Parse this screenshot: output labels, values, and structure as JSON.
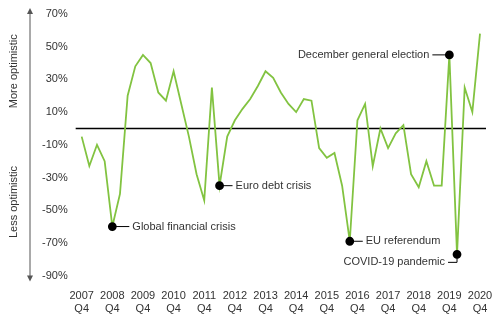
{
  "chart_data": {
    "type": "line",
    "color": "#82c341",
    "y_labels": {
      "above": "More optimistic",
      "below": "Less optimistic"
    },
    "categories": [
      "2007 Q4",
      null,
      null,
      null,
      "2008 Q4",
      null,
      null,
      null,
      "2009 Q4",
      null,
      null,
      null,
      "2010 Q4",
      null,
      null,
      null,
      "2011 Q4",
      null,
      null,
      null,
      "2012 Q4",
      null,
      null,
      null,
      "2013 Q4",
      null,
      null,
      null,
      "2014 Q4",
      null,
      null,
      null,
      "2015 Q4",
      null,
      null,
      null,
      "2016 Q4",
      null,
      null,
      null,
      "2017 Q4",
      null,
      null,
      null,
      "2018 Q4",
      null,
      null,
      null,
      "2019 Q4",
      null,
      null,
      null,
      "2020 Q4"
    ],
    "values": [
      -5,
      -23,
      -10,
      -20,
      -60,
      -40,
      20,
      38,
      45,
      40,
      22,
      17,
      35,
      15,
      -5,
      -28,
      -44,
      25,
      -35,
      -5,
      5,
      12,
      18,
      26,
      35,
      31,
      22,
      15,
      10,
      18,
      17,
      -12,
      -18,
      -15,
      -35,
      -69,
      5,
      15,
      -23,
      0,
      -12,
      -3,
      2,
      -28,
      -36,
      -20,
      -35,
      -35,
      45,
      -77,
      25,
      10,
      58
    ],
    "ylim": [
      -90,
      70
    ],
    "yticks": [
      {
        "value": -90,
        "label": "-90%"
      },
      {
        "value": -70,
        "label": "-70%"
      },
      {
        "value": -50,
        "label": "-50%"
      },
      {
        "value": -30,
        "label": "-30%"
      },
      {
        "value": -10,
        "label": "-10%"
      },
      {
        "value": 10,
        "label": "10%"
      },
      {
        "value": 30,
        "label": "30%"
      },
      {
        "value": 50,
        "label": "50%"
      },
      {
        "value": 70,
        "label": "70%"
      }
    ],
    "reference_line": 0,
    "annotations": [
      {
        "text": "Global financial crisis",
        "point": 4
      },
      {
        "text": "Euro debt crisis",
        "point": 18
      },
      {
        "text": "EU referendum",
        "point": 35
      },
      {
        "text": "December general election",
        "point": 48
      },
      {
        "text": "COVID-19 pandemic",
        "point": 49
      }
    ],
    "grid": false,
    "data_labels": false
  }
}
